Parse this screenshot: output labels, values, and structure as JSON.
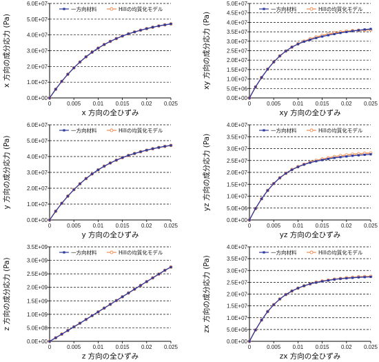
{
  "colors": {
    "series1": "#2c3aa0",
    "series2": "#f08a4b",
    "axis": "#000000",
    "grid": "#000000"
  },
  "chart_data": [
    {
      "type": "line",
      "xlabel": "x 方向の全ひずみ",
      "ylabel": "x 方向の成分応力 (Pa)",
      "xlim": [
        0,
        0.025
      ],
      "ylim": [
        0,
        60000000
      ],
      "xticks": [
        "0",
        "0.005",
        "0.01",
        "0.015",
        "0.02",
        "0.025"
      ],
      "yticks": [
        "0.0E+00",
        "1.0E+07",
        "2.0E+07",
        "3.0E+07",
        "4.0E+07",
        "5.0E+07",
        "6.0E+07"
      ],
      "grid": "horizontal dashed",
      "legend": "top",
      "x": [
        0,
        0.00125,
        0.0025,
        0.00375,
        0.005,
        0.00625,
        0.0075,
        0.00875,
        0.01,
        0.01125,
        0.0125,
        0.01375,
        0.015,
        0.01625,
        0.0175,
        0.01875,
        0.02,
        0.02125,
        0.0225,
        0.02375,
        0.025
      ],
      "series": [
        {
          "name": "一方向材料",
          "values": [
            0,
            5500000,
            10500000,
            15000000,
            19100000,
            22800000,
            26100000,
            29000000,
            31600000,
            33900000,
            35900000,
            37700000,
            39300000,
            40700000,
            41900000,
            43000000,
            44000000,
            44900000,
            45700000,
            46400000,
            47000000
          ]
        },
        {
          "name": "Hillの均質化モデル",
          "values": [
            0,
            5500000,
            10500000,
            15000000,
            19100000,
            22800000,
            26100000,
            29000000,
            31600000,
            33900000,
            35900000,
            37700000,
            39300000,
            40700000,
            41900000,
            43000000,
            44000000,
            44900000,
            45700000,
            46400000,
            47000000
          ]
        }
      ]
    },
    {
      "type": "line",
      "xlabel": "xy 方向の全ひずみ",
      "ylabel": "xy 方向の成分応力 (Pa)",
      "xlim": [
        0,
        0.025
      ],
      "ylim": [
        0,
        50000000
      ],
      "xticks": [
        "0",
        "0.005",
        "0.01",
        "0.015",
        "0.02",
        "0.025"
      ],
      "yticks": [
        "0.0E+00",
        "5.0E+06",
        "1.0E+07",
        "1.5E+07",
        "2.0E+07",
        "2.5E+07",
        "3.0E+07",
        "3.5E+07",
        "4.0E+07",
        "4.5E+07",
        "5.0E+07"
      ],
      "grid": "horizontal dashed",
      "legend": "top",
      "x": [
        0,
        0.00125,
        0.0025,
        0.00375,
        0.005,
        0.00625,
        0.0075,
        0.00875,
        0.01,
        0.01125,
        0.0125,
        0.01375,
        0.015,
        0.01625,
        0.0175,
        0.01875,
        0.02,
        0.02125,
        0.0225,
        0.02375,
        0.025
      ],
      "series": [
        {
          "name": "一方向材料",
          "values": [
            0,
            5800000,
            10800000,
            15200000,
            19000000,
            22200000,
            24800000,
            26900000,
            28500000,
            29800000,
            30800000,
            31700000,
            32500000,
            33200000,
            33800000,
            34400000,
            34900000,
            35400000,
            35800000,
            36200000,
            36500000
          ]
        },
        {
          "name": "Hillの均質化モデル",
          "values": [
            0,
            5800000,
            10800000,
            15200000,
            19000000,
            22200000,
            24800000,
            26900000,
            28600000,
            30000000,
            31200000,
            32200000,
            33100000,
            33800000,
            34400000,
            34900000,
            35300000,
            35600000,
            35800000,
            35900000,
            36000000
          ]
        }
      ]
    },
    {
      "type": "line",
      "xlabel": "y 方向の全ひずみ",
      "ylabel": "y 方向の成分応力 (Pa)",
      "xlim": [
        0,
        0.025
      ],
      "ylim": [
        0,
        60000000
      ],
      "xticks": [
        "0",
        "0.005",
        "0.01",
        "0.015",
        "0.02",
        "0.025"
      ],
      "yticks": [
        "0.0E+00",
        "1.0E+07",
        "2.0E+07",
        "3.0E+07",
        "4.0E+07",
        "5.0E+07",
        "6.0E+07"
      ],
      "grid": "horizontal dashed",
      "legend": "top",
      "x": [
        0,
        0.00125,
        0.0025,
        0.00375,
        0.005,
        0.00625,
        0.0075,
        0.00875,
        0.01,
        0.01125,
        0.0125,
        0.01375,
        0.015,
        0.01625,
        0.0175,
        0.01875,
        0.02,
        0.02125,
        0.0225,
        0.02375,
        0.025
      ],
      "series": [
        {
          "name": "一方向材料",
          "values": [
            0,
            5500000,
            10500000,
            15000000,
            19100000,
            22800000,
            26100000,
            29000000,
            31600000,
            33900000,
            35900000,
            37700000,
            39300000,
            40700000,
            41900000,
            43000000,
            44000000,
            44900000,
            45700000,
            46400000,
            47000000
          ]
        },
        {
          "name": "Hillの均質化モデル",
          "values": [
            0,
            5500000,
            10500000,
            15000000,
            19100000,
            22800000,
            26100000,
            29000000,
            31600000,
            33900000,
            35900000,
            37700000,
            39300000,
            40700000,
            41900000,
            43000000,
            44000000,
            44900000,
            45700000,
            46400000,
            47000000
          ]
        }
      ]
    },
    {
      "type": "line",
      "xlabel": "yz 方向の全ひずみ",
      "ylabel": "yz 方向の成分応力 (Pa)",
      "xlim": [
        0,
        0.025
      ],
      "ylim": [
        0,
        40000000
      ],
      "xticks": [
        "0",
        "0.005",
        "0.01",
        "0.015",
        "0.02",
        "0.025"
      ],
      "yticks": [
        "0.0E+00",
        "5.0E+06",
        "1.0E+07",
        "1.5E+07",
        "2.0E+07",
        "2.5E+07",
        "3.0E+07",
        "3.5E+07",
        "4.0E+07"
      ],
      "grid": "horizontal dashed",
      "legend": "top",
      "x": [
        0,
        0.00125,
        0.0025,
        0.00375,
        0.005,
        0.00625,
        0.0075,
        0.00875,
        0.01,
        0.01125,
        0.0125,
        0.01375,
        0.015,
        0.01625,
        0.0175,
        0.01875,
        0.02,
        0.02125,
        0.0225,
        0.02375,
        0.025
      ],
      "series": [
        {
          "name": "一方向材料",
          "values": [
            0,
            4800000,
            8900000,
            12400000,
            15300000,
            17700000,
            19600000,
            21100000,
            22300000,
            23300000,
            24100000,
            24700000,
            25200000,
            25700000,
            26100000,
            26400000,
            26700000,
            27000000,
            27200000,
            27400000,
            27600000
          ]
        },
        {
          "name": "Hillの均質化モデル",
          "values": [
            0,
            4800000,
            8900000,
            12400000,
            15300000,
            17700000,
            19600000,
            21200000,
            22400000,
            23400000,
            24300000,
            25000000,
            25600000,
            26100000,
            26600000,
            27000000,
            27300000,
            27600000,
            27800000,
            28000000,
            28100000
          ]
        }
      ]
    },
    {
      "type": "line",
      "xlabel": "z 方向の全ひずみ",
      "ylabel": "z 方向の成分応力 (Pa)",
      "xlim": [
        0,
        0.025
      ],
      "ylim": [
        0,
        3500000000
      ],
      "xticks": [
        "0",
        "0.005",
        "0.01",
        "0.015",
        "0.02",
        "0.025"
      ],
      "yticks": [
        "0.0E+00",
        "5.0E+08",
        "1.0E+09",
        "1.5E+09",
        "2.0E+09",
        "2.5E+09",
        "3.0E+09",
        "3.5E+09"
      ],
      "grid": "horizontal dashed",
      "legend": "top",
      "x": [
        0,
        0.00125,
        0.0025,
        0.00375,
        0.005,
        0.00625,
        0.0075,
        0.00875,
        0.01,
        0.01125,
        0.0125,
        0.01375,
        0.015,
        0.01625,
        0.0175,
        0.01875,
        0.02,
        0.02125,
        0.0225,
        0.02375,
        0.025
      ],
      "series": [
        {
          "name": "一方向材料",
          "values": [
            0,
            130000000,
            265000000,
            400000000,
            535000000,
            670000000,
            810000000,
            950000000,
            1090000000,
            1230000000,
            1370000000,
            1510000000,
            1650000000,
            1790000000,
            1930000000,
            2070000000,
            2210000000,
            2350000000,
            2490000000,
            2630000000,
            2750000000
          ]
        },
        {
          "name": "Hillの均質化モデル",
          "values": [
            0,
            130000000,
            265000000,
            400000000,
            535000000,
            670000000,
            810000000,
            950000000,
            1090000000,
            1230000000,
            1370000000,
            1510000000,
            1650000000,
            1790000000,
            1930000000,
            2070000000,
            2210000000,
            2350000000,
            2490000000,
            2630000000,
            2750000000
          ]
        }
      ]
    },
    {
      "type": "line",
      "xlabel": "zx 方向の全ひずみ",
      "ylabel": "zx 方向の成分応力 (Pa)",
      "xlim": [
        0,
        0.025
      ],
      "ylim": [
        0,
        40000000
      ],
      "xticks": [
        "0",
        "0.005",
        "0.01",
        "0.015",
        "0.02",
        "0.025"
      ],
      "yticks": [
        "0.0E+00",
        "5.0E+06",
        "1.0E+07",
        "1.5E+07",
        "2.0E+07",
        "2.5E+07",
        "3.0E+07",
        "3.5E+07",
        "4.0E+07"
      ],
      "grid": "horizontal dashed",
      "legend": "top",
      "x": [
        0,
        0.00125,
        0.0025,
        0.00375,
        0.005,
        0.00625,
        0.0075,
        0.00875,
        0.01,
        0.01125,
        0.0125,
        0.01375,
        0.015,
        0.01625,
        0.0175,
        0.01875,
        0.02,
        0.02125,
        0.0225,
        0.02375,
        0.025
      ],
      "series": [
        {
          "name": "一方向材料",
          "values": [
            0,
            4800000,
            9000000,
            12600000,
            15500000,
            17900000,
            19800000,
            21300000,
            22500000,
            23500000,
            24300000,
            24900000,
            25400000,
            25800000,
            26200000,
            26500000,
            26700000,
            26900000,
            27100000,
            27200000,
            27300000
          ]
        },
        {
          "name": "Hillの均質化モデル",
          "values": [
            0,
            4800000,
            9000000,
            12600000,
            15500000,
            17900000,
            19800000,
            21300000,
            22500000,
            23500000,
            24300000,
            25000000,
            25500000,
            25900000,
            26300000,
            26600000,
            26900000,
            27100000,
            27300000,
            27400000,
            27500000
          ]
        }
      ]
    }
  ]
}
